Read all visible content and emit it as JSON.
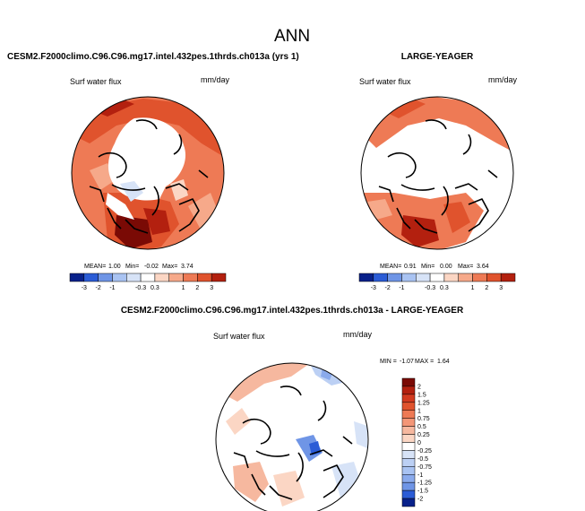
{
  "title": "ANN",
  "colors": {
    "dark_blue": "#08218a",
    "blue": "#2b5cd6",
    "mid_blue": "#6f95e6",
    "light_blue": "#a9c3f2",
    "pale_blue": "#d7e3f7",
    "white": "#ffffff",
    "pale_red": "#fbd6c4",
    "light_red": "#f6a98a",
    "mid_red": "#ee7a55",
    "red": "#e0532d",
    "dark_red": "#b3200f",
    "darkest_red": "#7a0a05"
  },
  "chart_data": [
    {
      "type": "heatmap",
      "name": "test",
      "title": "CESM2.F2000climo.C96.C96.mg17.intel.432pes.1thrds.ch013a (yrs 1)",
      "variable": "Surf water flux",
      "units": "mm/day",
      "projection": "north polar stereographic",
      "stats": {
        "mean_label": "MEAN=",
        "mean": "1.00",
        "min_label": "Min=",
        "min": "-0.02",
        "max_label": "Max=",
        "max": "3.74"
      },
      "colorbar": {
        "orientation": "horizontal",
        "levels": [
          -3,
          -2,
          -1,
          -0.5,
          -0.3,
          0.3,
          0.5,
          1,
          2,
          3
        ],
        "tick_labels": [
          "-3",
          "-2",
          "-1",
          "-0.3",
          "0.3",
          "1",
          "2",
          "3"
        ],
        "colors": [
          "#08218a",
          "#2b5cd6",
          "#6f95e6",
          "#a9c3f2",
          "#d7e3f7",
          "#ffffff",
          "#fbd6c4",
          "#f6a98a",
          "#ee7a55",
          "#e0532d",
          "#b3200f"
        ]
      }
    },
    {
      "type": "heatmap",
      "name": "reference",
      "title": "LARGE-YEAGER",
      "variable": "Surf water flux",
      "units": "mm/day",
      "projection": "north polar stereographic",
      "stats": {
        "mean_label": "MEAN=",
        "mean": "0.91",
        "min_label": "Min=",
        "min": "0.00",
        "max_label": "Max=",
        "max": "3.64"
      },
      "colorbar": {
        "orientation": "horizontal",
        "levels": [
          -3,
          -2,
          -1,
          -0.5,
          -0.3,
          0.3,
          0.5,
          1,
          2,
          3
        ],
        "tick_labels": [
          "-3",
          "-2",
          "-1",
          "-0.3",
          "0.3",
          "1",
          "2",
          "3"
        ],
        "colors": [
          "#08218a",
          "#2b5cd6",
          "#6f95e6",
          "#a9c3f2",
          "#d7e3f7",
          "#ffffff",
          "#fbd6c4",
          "#f6a98a",
          "#ee7a55",
          "#e0532d",
          "#b3200f"
        ]
      }
    },
    {
      "type": "heatmap",
      "name": "difference",
      "title": "CESM2.F2000climo.C96.C96.mg17.intel.432pes.1thrds.ch013a - LARGE-YEAGER",
      "variable": "Surf water flux",
      "units": "mm/day",
      "projection": "north polar stereographic",
      "stats": {
        "min_label": "MIN =",
        "min": "-1.07",
        "max_label": "MAX =",
        "max": "1.64"
      },
      "colorbar": {
        "orientation": "vertical",
        "levels": [
          2,
          1.5,
          1.25,
          1,
          0.75,
          0.5,
          0.25,
          0,
          -0.25,
          -0.5,
          -0.75,
          -1,
          -1.25,
          -1.5,
          -2
        ],
        "tick_labels": [
          "2",
          "1.5",
          "1.25",
          "1",
          "0.75",
          "0.5",
          "0.25",
          "0",
          "-0.25",
          "-0.5",
          "-0.75",
          "-1",
          "-1.25",
          "-1.5",
          "-2"
        ],
        "colors": [
          "#7a0a05",
          "#b3200f",
          "#d23a1f",
          "#e0532d",
          "#ee7a55",
          "#f39677",
          "#f6b89f",
          "#fbd6c4",
          "#ffffff",
          "#d7e3f7",
          "#bcd0f4",
          "#a9c3f2",
          "#8aaaec",
          "#6f95e6",
          "#2b5cd6",
          "#08218a"
        ]
      }
    }
  ]
}
